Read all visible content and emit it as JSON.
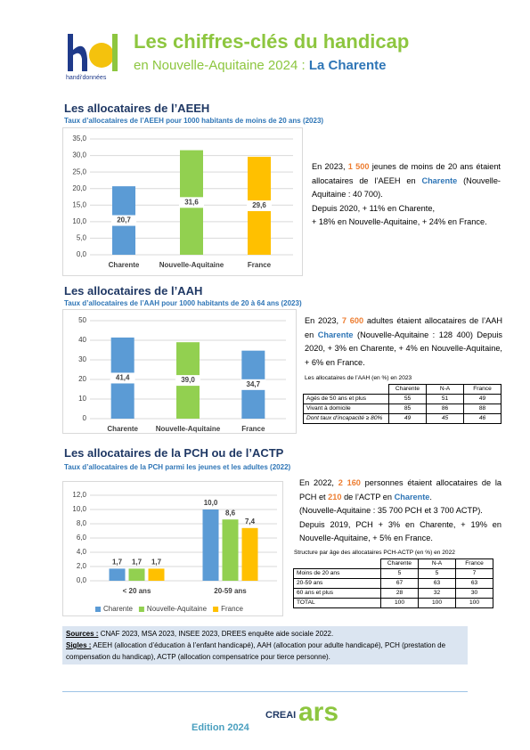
{
  "header": {
    "logo_text": "handi'données",
    "title": "Les chiffres-clés du handicap",
    "subtitle": "en Nouvelle-Aquitaine 2024 : ",
    "subtitle_place": "La Charente"
  },
  "sections": [
    {
      "heading": "Les allocataires de l’AEEH",
      "text": [
        "En 2023, ",
        "1 500",
        " jeunes de moins de 20 ans étaient allocataires de l’AEEH en ",
        "Charente",
        " (Nouvelle-Aquitaine : 40 700).",
        "Depuis 2020, + 11% en Charente,",
        "+ 18% en Nouvelle-Aquitaine, + 24% en France."
      ]
    },
    {
      "heading": "Les allocataires de l’AAH",
      "text": [
        "En 2023, ",
        "7 600",
        " adultes étaient allocataires de l’AAH en ",
        "Charente",
        " (Nouvelle-Aquitaine : 128 400) Depuis 2020, + 3% en Charente, + 4% en Nouvelle-Aquitaine, + 6% en France."
      ],
      "table": {
        "title": "Les allocataires de l’AAH (en %) en 2023",
        "columns": [
          "Charente",
          "N-A",
          "France"
        ],
        "rows": [
          {
            "label": "Agés de 50 ans et plus",
            "values": [
              55,
              51,
              49
            ]
          },
          {
            "label": "Vivant à domicile",
            "values": [
              85,
              86,
              88
            ]
          },
          {
            "label": "Dont taux d’incapacité ≥ 80%",
            "values": [
              49,
              45,
              46
            ]
          }
        ]
      }
    },
    {
      "heading": "Les allocataires de la PCH ou de l’ACTP",
      "text": [
        "En 2022, ",
        "2 160",
        " personnes étaient allocataires de la PCH et ",
        "210",
        " de l’ACTP en ",
        "Charente",
        ".",
        "(Nouvelle-Aquitaine : 35 700 PCH et 3 700 ACTP).",
        "Depuis 2019, PCH + 3% en Charente, + 19% en Nouvelle-Aquitaine, + 5% en France."
      ],
      "table": {
        "title": "Structure par âge des allocataires PCH-ACTP (en %) en 2022",
        "columns": [
          "Charente",
          "N-A",
          "France"
        ],
        "rows": [
          {
            "label": "Moins de 20 ans",
            "values": [
              5,
              5,
              7
            ]
          },
          {
            "label": "20-59 ans",
            "values": [
              67,
              63,
              63
            ]
          },
          {
            "label": "60 ans et plus",
            "values": [
              28,
              32,
              30
            ]
          },
          {
            "label": "TOTAL",
            "values": [
              100,
              100,
              100
            ]
          }
        ]
      }
    }
  ],
  "chart_data": [
    {
      "type": "bar",
      "title": "Taux d’allocataires de l’AEEH pour 1000 habitants de moins de 20 ans (2023)",
      "categories": [
        "Charente",
        "Nouvelle-Aquitaine",
        "France"
      ],
      "values": [
        20.7,
        31.6,
        29.6
      ],
      "value_labels": [
        "20,7",
        "31,6",
        "29,6"
      ],
      "colors": [
        "#5b9bd5",
        "#92d050",
        "#ffc000"
      ],
      "ylim": [
        0,
        35
      ],
      "yticks": [
        {
          "value": 0,
          "label": "0,0"
        },
        {
          "value": 5,
          "label": "5,0"
        },
        {
          "value": 10,
          "label": "10,0"
        },
        {
          "value": 15,
          "label": "15,0"
        },
        {
          "value": 20,
          "label": "20,0"
        },
        {
          "value": 25,
          "label": "25,0"
        },
        {
          "value": 30,
          "label": "30,0"
        },
        {
          "value": 35,
          "label": "35,0"
        }
      ],
      "grid": true
    },
    {
      "type": "bar",
      "title": "Taux d’allocataires de l’AAH pour 1000 habitants de 20 à 64 ans (2023)",
      "categories": [
        "Charente",
        "Nouvelle-Aquitaine",
        "France"
      ],
      "values": [
        41.4,
        39.0,
        34.7
      ],
      "value_labels": [
        "41,4",
        "39,0",
        "34,7"
      ],
      "colors": [
        "#5b9bd5",
        "#92d050",
        "#5b9bd5"
      ],
      "ylim": [
        0,
        50
      ],
      "yticks": [
        0,
        10,
        20,
        30,
        40,
        50
      ],
      "grid": true
    },
    {
      "type": "bar",
      "title": "Taux d’allocataires de la PCH parmi les jeunes et les adultes (2022)",
      "categories": [
        "< 20 ans",
        "20-59 ans"
      ],
      "series": [
        {
          "name": "Charente",
          "color": "#5b9bd5",
          "values": [
            1.7,
            10.0
          ],
          "value_labels": [
            "1,7",
            "10,0"
          ]
        },
        {
          "name": "Nouvelle-Aquitaine",
          "color": "#92d050",
          "values": [
            1.7,
            8.6
          ],
          "value_labels": [
            "1,7",
            "8,6"
          ]
        },
        {
          "name": "France",
          "color": "#ffc000",
          "values": [
            1.7,
            7.4
          ],
          "value_labels": [
            "1,7",
            "7,4"
          ]
        }
      ],
      "ylim": [
        0,
        12
      ],
      "yticks": [
        {
          "value": 0,
          "label": "0,0"
        },
        {
          "value": 2,
          "label": "2,0"
        },
        {
          "value": 4,
          "label": "4,0"
        },
        {
          "value": 6,
          "label": "6,0"
        },
        {
          "value": 8,
          "label": "8,0"
        },
        {
          "value": 10,
          "label": "10,0"
        },
        {
          "value": 12,
          "label": "12,0"
        }
      ],
      "grid": true,
      "legend": "bottom"
    }
  ],
  "footer": {
    "sources_label": "Sources :",
    "sources": " CNAF 2023, MSA 2023, INSEE 2023, DREES enquête aide sociale 2022.",
    "sigles_label": "Sigles :",
    "sigles": " AEEH (allocation d’éducation à l’enfant handicapé), AAH (allocation pour adulte handicapé), PCH (prestation de compensation du handicap), ACTP (allocation compensatrice pour tierce personne).",
    "edition": "Edition 2024",
    "partners": [
      "CREAI",
      "ars"
    ]
  }
}
